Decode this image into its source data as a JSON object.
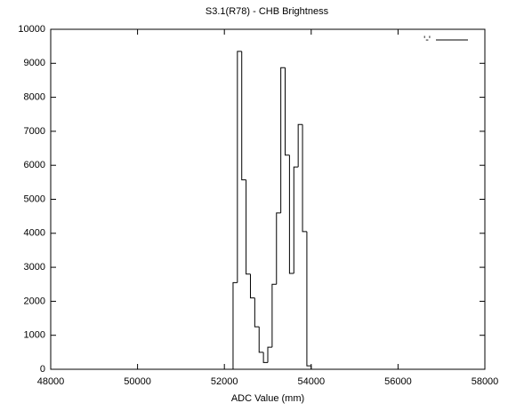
{
  "chart_data": {
    "type": "histogram",
    "title": "S3.1(R78) - CHB Brightness",
    "x_label": "ADC Value (mm)",
    "bins": [
      52200,
      52300,
      52400,
      52500,
      52600,
      52700,
      52800,
      52900,
      53000,
      53100,
      53200,
      53300,
      53400,
      53500,
      53600,
      53700,
      53800,
      53900,
      54000
    ],
    "values": [
      2550,
      9350,
      5570,
      2800,
      2100,
      1250,
      500,
      200,
      650,
      2500,
      4600,
      8870,
      6300,
      2820,
      5950,
      7200,
      4050,
      100
    ],
    "series_name": "'-'",
    "color": "#000000",
    "xlim": [
      48000,
      58000
    ],
    "xticks": [
      48000,
      50000,
      52000,
      54000,
      56000,
      58000
    ],
    "ylim": [
      0,
      10000
    ],
    "yticks": [
      0,
      1000,
      2000,
      3000,
      4000,
      5000,
      6000,
      7000,
      8000,
      9000,
      10000
    ],
    "grid": false,
    "legend": "top-right"
  }
}
